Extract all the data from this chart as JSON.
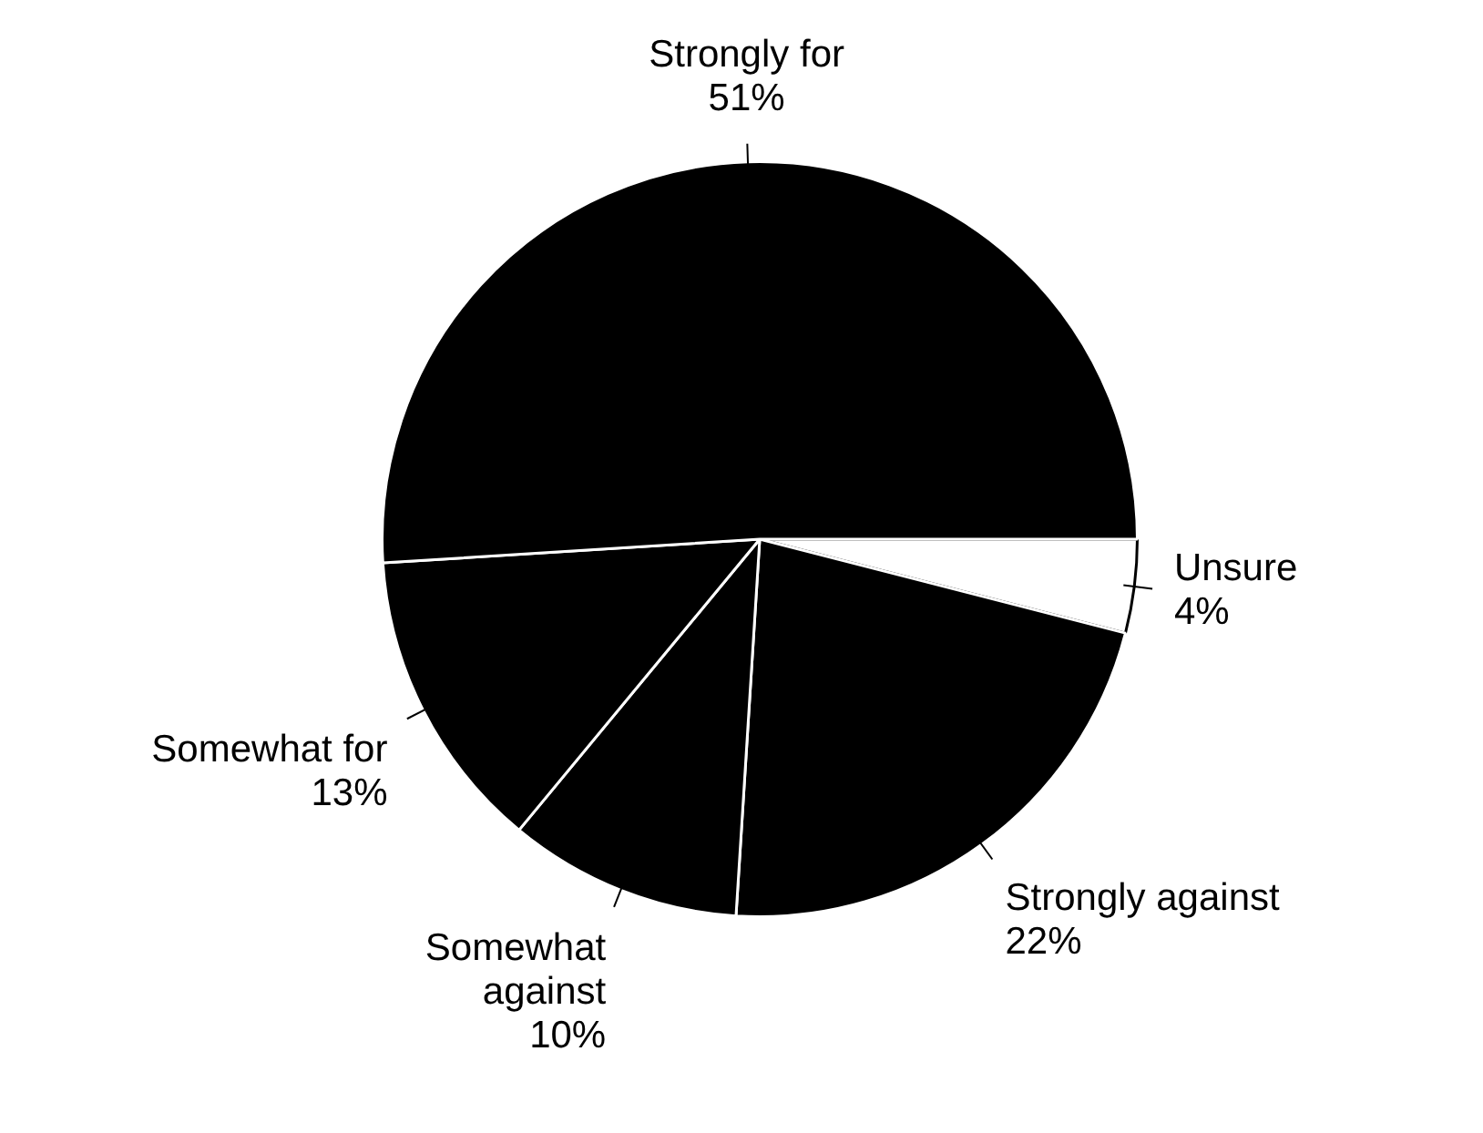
{
  "chart_data": {
    "type": "pie",
    "categories": [
      "Unsure",
      "Strongly against",
      "Somewhat against",
      "Somewhat for",
      "Strongly for"
    ],
    "values": [
      4,
      22,
      10,
      13,
      51
    ],
    "colors": [
      "#ffffff",
      "#000000",
      "#000000",
      "#000000",
      "#000000"
    ],
    "value_labels": [
      "4%",
      "22%",
      "10%",
      "13%",
      "51%"
    ],
    "legend": false
  }
}
